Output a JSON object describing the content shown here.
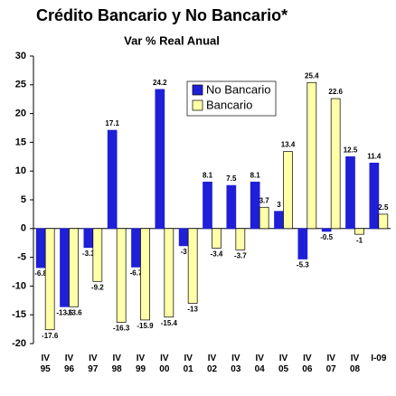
{
  "chart_data": {
    "type": "bar",
    "title": "Crédito Bancario y No Bancario*",
    "subtitle": "Var % Real Anual",
    "categories": [
      [
        "IV",
        "95"
      ],
      [
        "IV",
        "96"
      ],
      [
        "IV",
        "97"
      ],
      [
        "IV",
        "98"
      ],
      [
        "IV",
        "99"
      ],
      [
        "IV",
        "00"
      ],
      [
        "IV",
        "01"
      ],
      [
        "IV",
        "02"
      ],
      [
        "IV",
        "03"
      ],
      [
        "IV",
        "04"
      ],
      [
        "IV",
        "05"
      ],
      [
        "IV",
        "06"
      ],
      [
        "IV",
        "07"
      ],
      [
        "IV",
        "08"
      ],
      [
        "I-09"
      ]
    ],
    "series": [
      {
        "name": "No Bancario",
        "color": "#1f1fd8",
        "values": [
          -6.8,
          -13.6,
          -3.3,
          17.1,
          -6.7,
          24.2,
          -3.0,
          8.1,
          7.5,
          8.1,
          3.0,
          -5.3,
          -0.5,
          12.5,
          11.4
        ]
      },
      {
        "name": "Bancario",
        "color": "#ffffa8",
        "values": [
          -17.6,
          -13.6,
          -9.2,
          -16.3,
          -15.9,
          -15.4,
          -13.0,
          -3.4,
          -3.7,
          3.7,
          13.4,
          25.4,
          22.6,
          -1.0,
          2.5
        ]
      }
    ],
    "ylim": [
      -20,
      30
    ],
    "yticks": [
      -20,
      -15,
      -10,
      -5,
      0,
      5,
      10,
      15,
      20,
      25,
      30
    ]
  }
}
